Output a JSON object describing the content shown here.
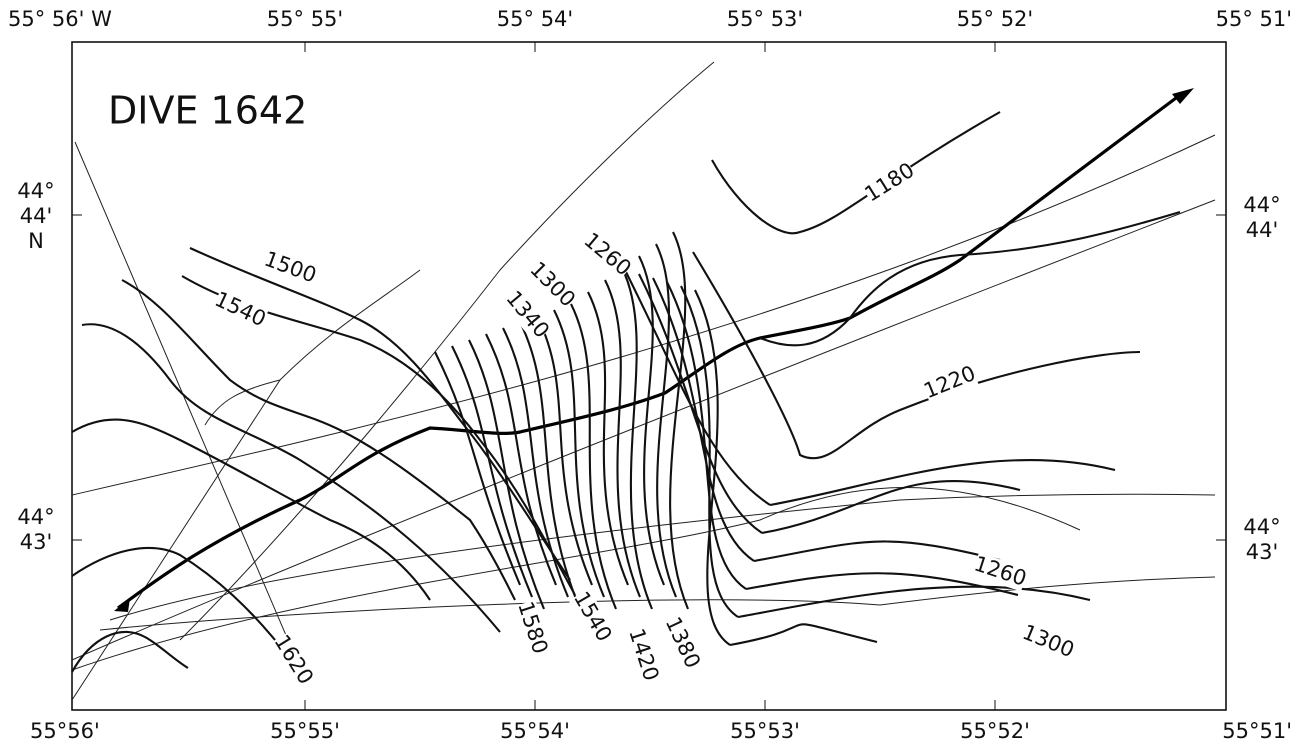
{
  "title": "DIVE 1642",
  "longitude_labels_top": [
    "55° 56' W",
    "55° 55'",
    "55° 54'",
    "55° 53'",
    "55° 52'",
    "55° 51'"
  ],
  "longitude_labels_bottom": [
    "55°56'",
    "55°55'",
    "55°54'",
    "55°53'",
    "55°52'",
    "55°51'"
  ],
  "latitude_labels_left": [
    [
      "44°",
      "44'",
      "N"
    ],
    [
      "44°",
      "43'"
    ]
  ],
  "latitude_labels_right": [
    [
      "44°",
      "44'"
    ],
    [
      "44°",
      "43'"
    ]
  ],
  "contour_labels": [
    1180,
    1500,
    1540,
    1260,
    1300,
    1340,
    1220,
    1620,
    1580,
    1540,
    1420,
    1380,
    1260,
    1300
  ]
}
